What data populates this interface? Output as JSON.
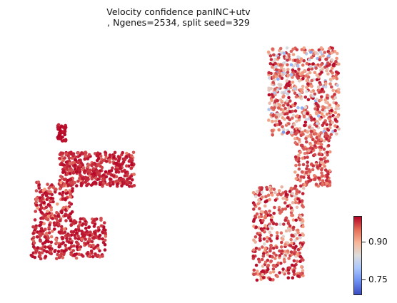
{
  "chart_data": {
    "type": "scatter",
    "title": "Velocity confidence panINC+utv\n, Ngenes=2534, split seed=329",
    "title_lines": [
      "Velocity confidence panINC+utv",
      ", Ngenes=2534, split seed=329"
    ],
    "axes": "off",
    "grid": false,
    "colormap": "coolwarm",
    "colorbar": {
      "position": "right",
      "range": [
        0.7,
        0.97
      ],
      "ticks": [
        0.75,
        0.9
      ],
      "tick_labels": [
        "0.75",
        "0.90"
      ]
    },
    "clusters": [
      {
        "group": "left-top-nub",
        "x": [
          -6.8,
          -6.4
        ],
        "y": [
          2.3,
          3.1
        ],
        "n_points": 40,
        "color_value": [
          0.95,
          0.97
        ]
      },
      {
        "group": "left-upper-arm",
        "x": [
          -6.7,
          -3.3
        ],
        "y": [
          0.2,
          1.8
        ],
        "n_points": 420,
        "color_value": [
          0.9,
          0.97
        ]
      },
      {
        "group": "left-middle",
        "x": [
          -7.8,
          -6.1
        ],
        "y": [
          -1.3,
          0.4
        ],
        "n_points": 160,
        "color_value": [
          0.86,
          0.97
        ]
      },
      {
        "group": "left-lower-arm",
        "x": [
          -8.0,
          -4.6
        ],
        "y": [
          -3.2,
          -1.3
        ],
        "n_points": 330,
        "color_value": [
          0.9,
          0.97
        ]
      },
      {
        "group": "right-upper-lobe",
        "x": [
          2.8,
          6.0
        ],
        "y": [
          2.6,
          6.7
        ],
        "n_points": 620,
        "color_value": [
          0.72,
          0.97
        ]
      },
      {
        "group": "right-mid-band",
        "x": [
          4.0,
          5.6
        ],
        "y": [
          0.2,
          2.8
        ],
        "n_points": 220,
        "color_value": [
          0.84,
          0.96
        ]
      },
      {
        "group": "right-lower-tail",
        "x": [
          2.1,
          4.4
        ],
        "y": [
          -4.2,
          0.2
        ],
        "n_points": 400,
        "color_value": [
          0.8,
          0.97
        ]
      }
    ]
  }
}
